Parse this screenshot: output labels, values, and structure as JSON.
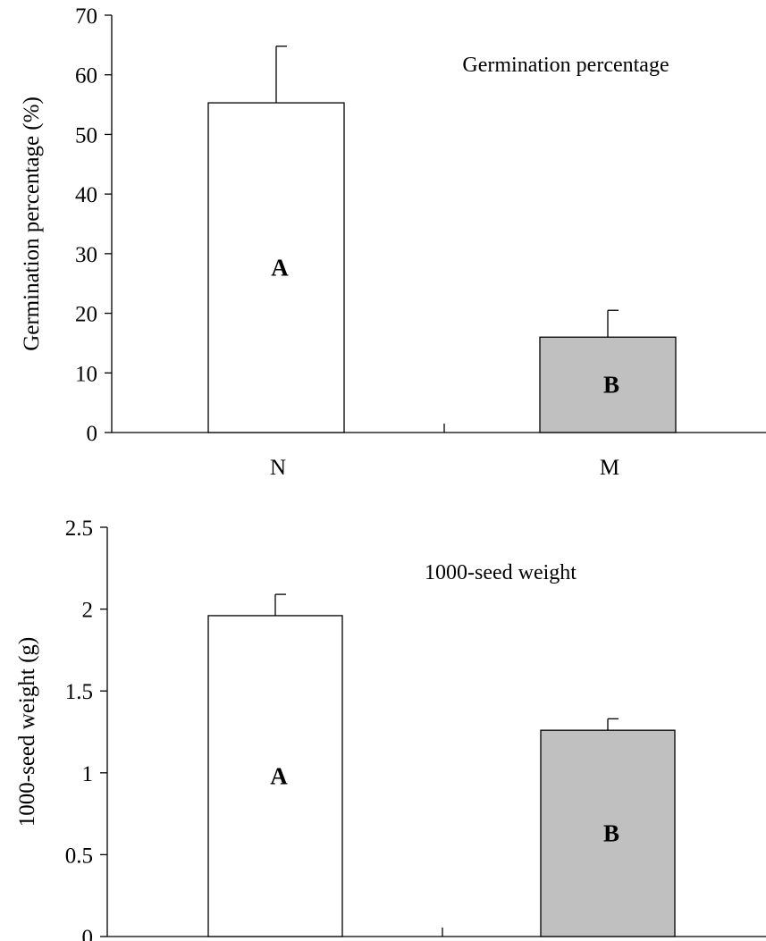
{
  "colors": {
    "series_N": "#ffffff",
    "series_M": "#c0c0c0",
    "stroke": "#000000"
  },
  "chart_data": [
    {
      "type": "bar",
      "categories": [
        "N",
        "M"
      ],
      "values": [
        55.3,
        16.0
      ],
      "errors": [
        9.5,
        4.5
      ],
      "letters": [
        "A",
        "B"
      ],
      "annotation": "Germination percentage",
      "ylabel": "Germination percentage (%)",
      "ylim": [
        0,
        70
      ],
      "yticks": [
        0,
        10,
        20,
        30,
        40,
        50,
        60,
        70
      ],
      "ytick_labels": [
        "0",
        "10",
        "20",
        "30",
        "40",
        "50",
        "60",
        "70"
      ]
    },
    {
      "type": "bar",
      "categories": [
        "",
        ""
      ],
      "values": [
        1.96,
        1.26
      ],
      "errors": [
        0.13,
        0.07
      ],
      "letters": [
        "A",
        "B"
      ],
      "annotation": "1000-seed weight",
      "ylabel": "1000-seed weight (g)",
      "ylim": [
        0,
        2.5
      ],
      "yticks": [
        0,
        0.5,
        1,
        1.5,
        2,
        2.5
      ],
      "ytick_labels": [
        "0",
        "0.5",
        "1",
        "1.5",
        "2",
        "2.5"
      ]
    }
  ]
}
